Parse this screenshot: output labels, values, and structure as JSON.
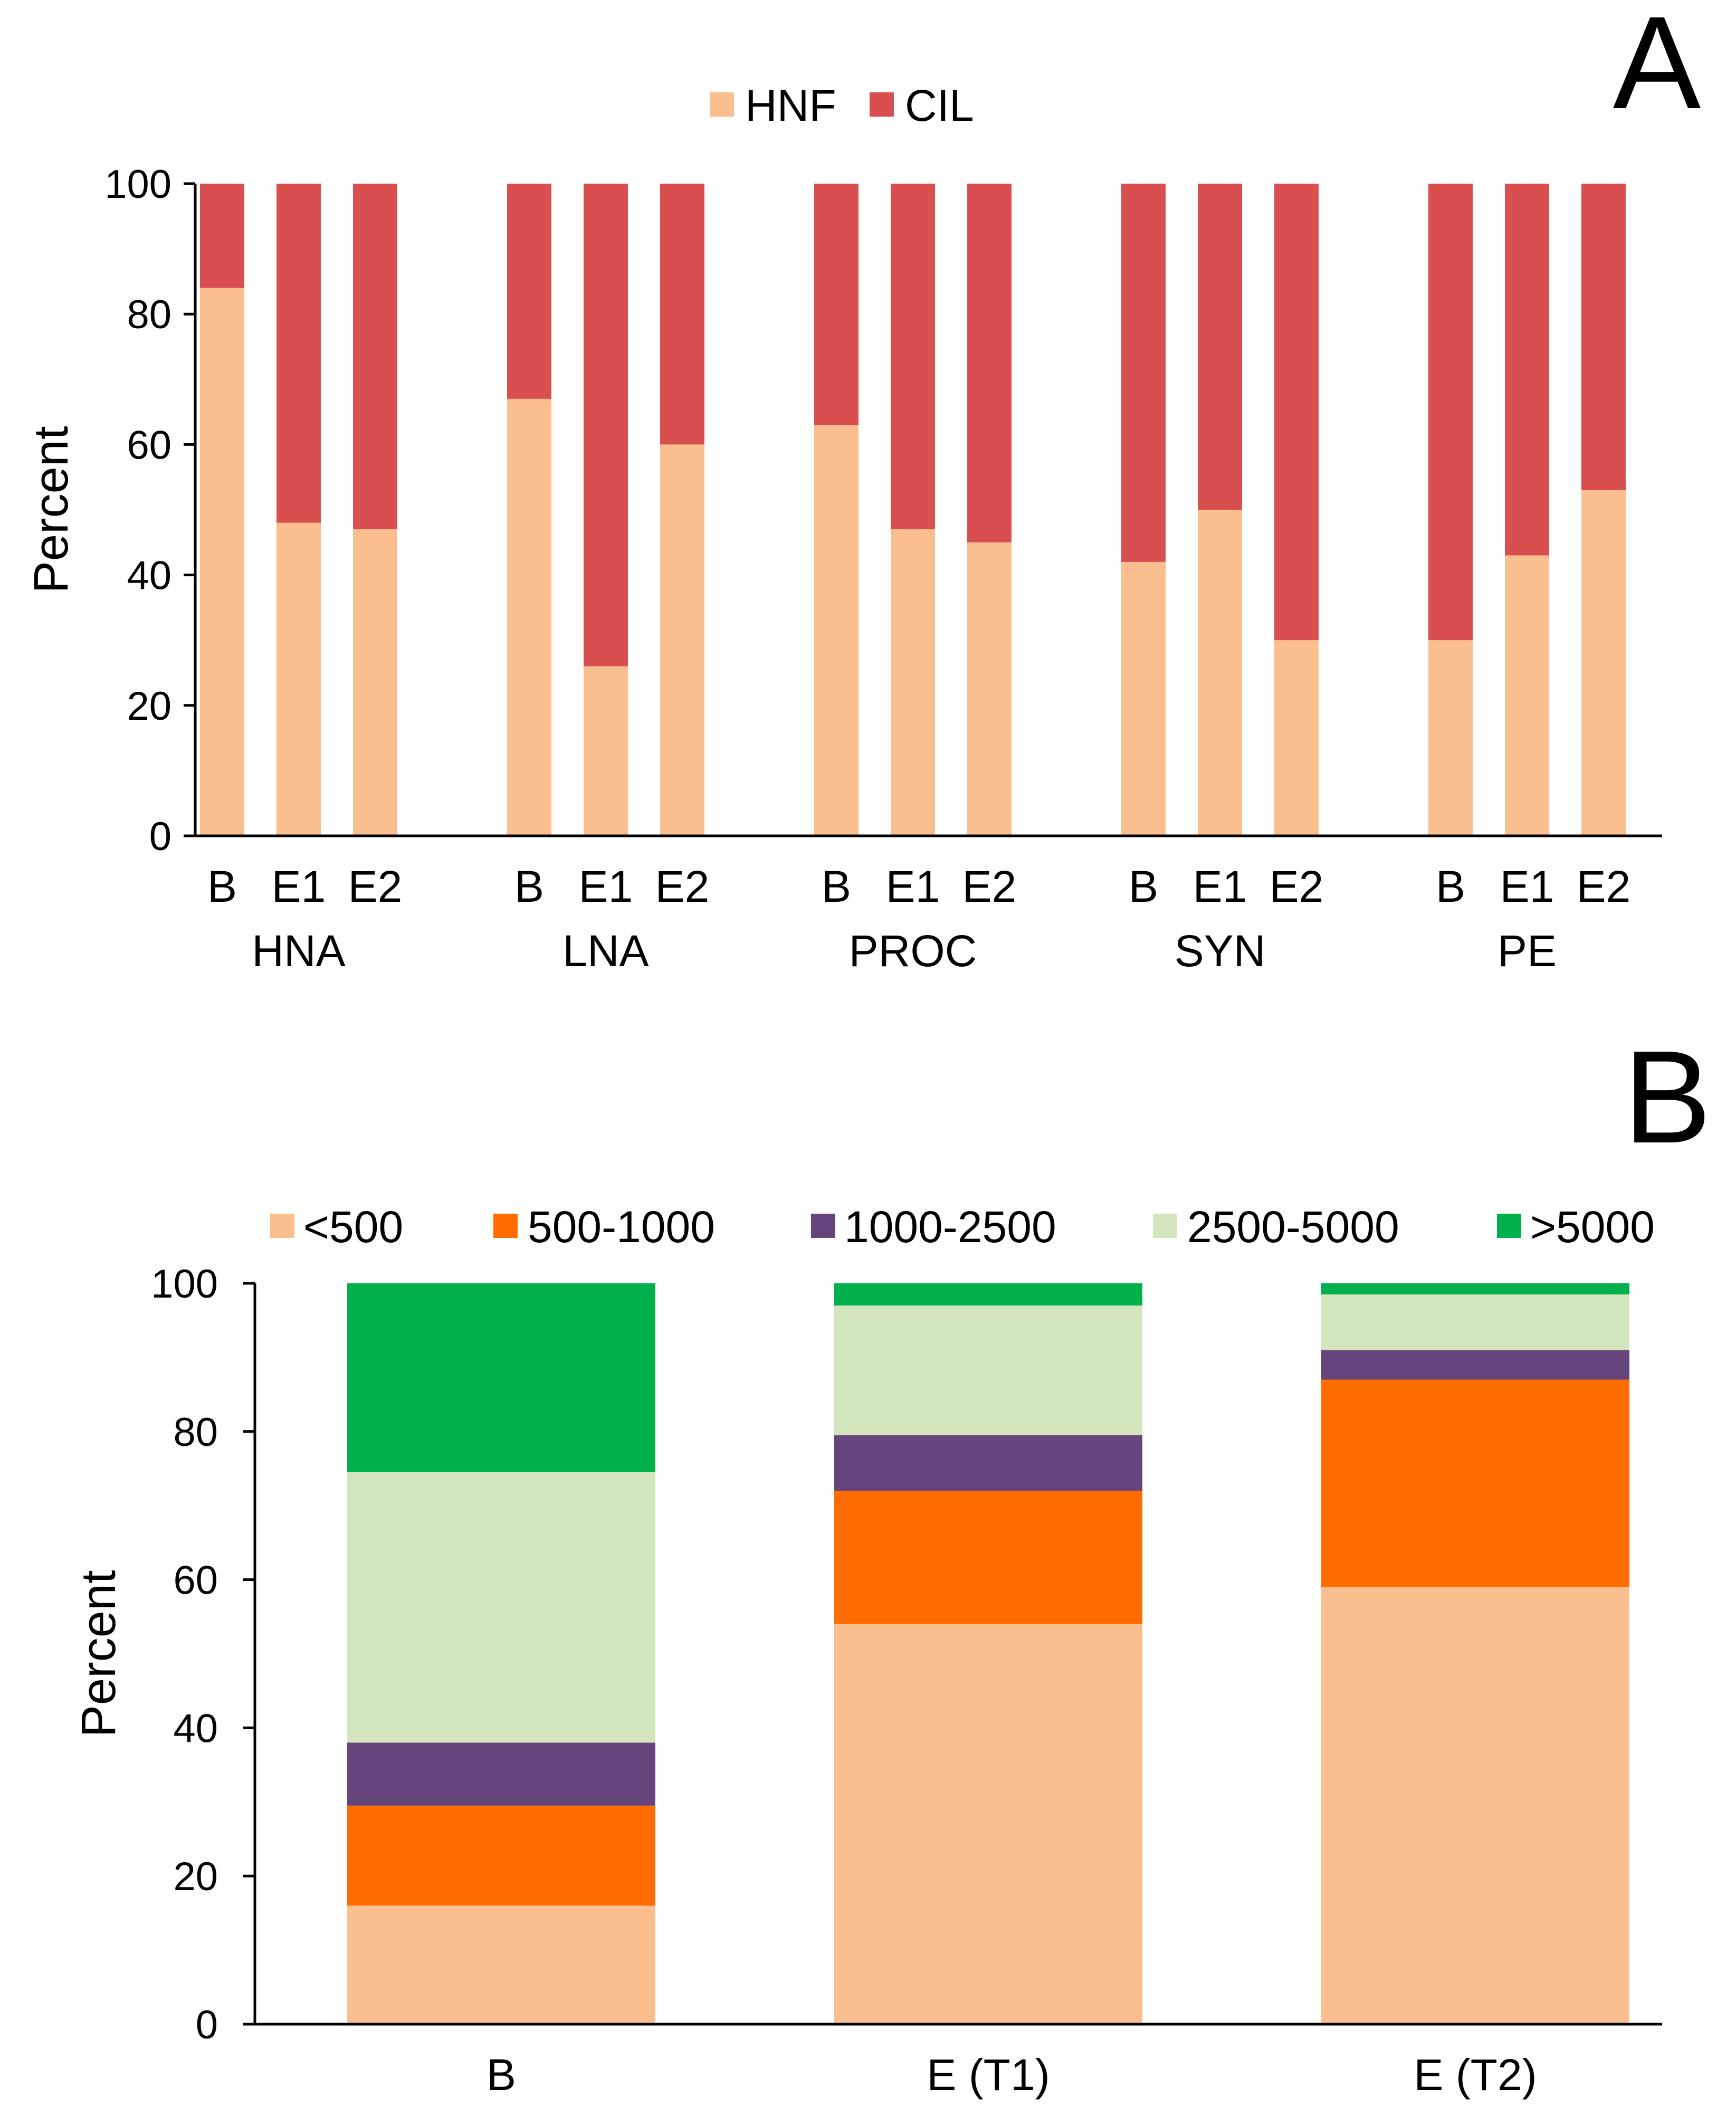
{
  "chart_data": [
    {
      "type": "bar",
      "stacked": true,
      "panel_label": "A",
      "ylabel": "Percent",
      "ylim": [
        0,
        100
      ],
      "yticks": [
        "0",
        "20",
        "40",
        "60",
        "80",
        "100"
      ],
      "groups": [
        "HNA",
        "LNA",
        "PROC",
        "SYN",
        "PE"
      ],
      "categories": [
        "B",
        "E1",
        "E2"
      ],
      "legend": [
        "HNF",
        "CIL"
      ],
      "legend_position": "top-center",
      "colors": [
        "#fbbf8f",
        "#d94f4f"
      ],
      "series": [
        {
          "name": "HNF",
          "values": [
            [
              84,
              48,
              47
            ],
            [
              67,
              26,
              60
            ],
            [
              63,
              47,
              45
            ],
            [
              42,
              50,
              30
            ],
            [
              30,
              43,
              53
            ]
          ]
        },
        {
          "name": "CIL",
          "values": [
            [
              16,
              52,
              53
            ],
            [
              33,
              74,
              40
            ],
            [
              37,
              53,
              55
            ],
            [
              58,
              50,
              70
            ],
            [
              70,
              57,
              47
            ]
          ]
        }
      ]
    },
    {
      "type": "bar",
      "stacked": true,
      "panel_label": "B",
      "ylabel": "Percent",
      "ylim": [
        0,
        100
      ],
      "yticks": [
        "0",
        "20",
        "40",
        "60",
        "80",
        "100"
      ],
      "categories": [
        "B",
        "E (T1)",
        "E (T2)"
      ],
      "legend": [
        "<500",
        "500-1000",
        "1000-2500",
        "2500-5000",
        ">5000"
      ],
      "legend_position": "top-center",
      "colors": [
        "#fbbf8f",
        "#ff6d00",
        "#66457c",
        "#d3e5bd",
        "#00b04a"
      ],
      "series": [
        {
          "name": "<500",
          "values": [
            16,
            54,
            59
          ]
        },
        {
          "name": "500-1000",
          "values": [
            13.5,
            18,
            28
          ]
        },
        {
          "name": "1000-2500",
          "values": [
            8.5,
            7.5,
            4
          ]
        },
        {
          "name": "2500-5000",
          "values": [
            36.5,
            17.5,
            7.5
          ]
        },
        {
          "name": ">5000",
          "values": [
            25.5,
            3,
            1.5
          ]
        }
      ]
    }
  ]
}
